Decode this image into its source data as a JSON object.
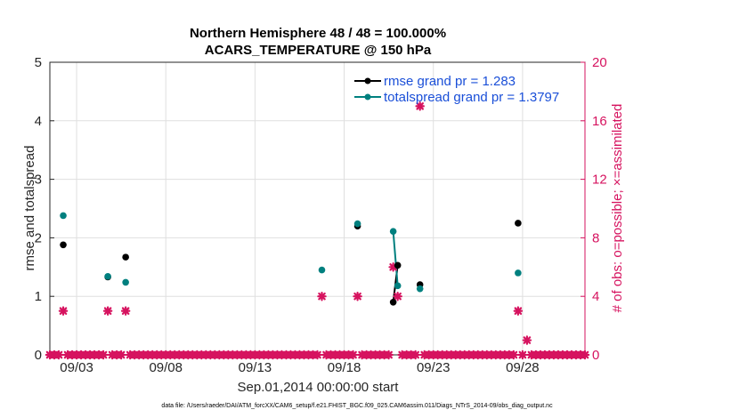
{
  "chart_data": {
    "type": "scatter",
    "title": "Northern Hemisphere 48 / 48 = 100.000%",
    "subtitle": "ACARS_TEMPERATURE @ 150 hPa",
    "xlabel": "Sep.01,2014 00:00:00 start",
    "ylabel": "rmse and totalspread",
    "ylabel_right": "# of obs: o=possible; ×=assimilated",
    "footnote": "data file: /Users/raeder/DAI/ATM_forcXX/CAM6_setup/f.e21.FHIST_BGC.f09_025.CAM6assim.011/Diags_NTrS_2014-09/obs_diag_output.nc",
    "xlim": [
      1.5,
      31.5
    ],
    "ylim": [
      0,
      5
    ],
    "ylim_right": [
      0,
      20
    ],
    "x_ticks": [
      3,
      8,
      13,
      18,
      23,
      28
    ],
    "x_tick_labels": [
      "09/03",
      "09/08",
      "09/13",
      "09/18",
      "09/23",
      "09/28"
    ],
    "y_ticks": [
      0,
      1,
      2,
      3,
      4,
      5
    ],
    "y_tick_labels": [
      "0",
      "1",
      "2",
      "3",
      "4",
      "5"
    ],
    "y_right_ticks": [
      0,
      4,
      8,
      12,
      16,
      20
    ],
    "y_right_tick_labels": [
      "0",
      "4",
      "8",
      "12",
      "16",
      "20"
    ],
    "grid": true,
    "legend_position": "top-right",
    "series": [
      {
        "name": "rmse grand pr = 1.283",
        "color": "#000000",
        "axis": "left",
        "points": [
          [
            2.25,
            1.88
          ],
          [
            4.75,
            1.33
          ],
          [
            5.75,
            1.67
          ],
          [
            18.75,
            2.2
          ],
          [
            20.75,
            0.9
          ],
          [
            21.0,
            1.53
          ],
          [
            22.25,
            1.2
          ],
          [
            27.75,
            2.25
          ]
        ]
      },
      {
        "name": "totalspread grand pr = 1.3797",
        "color": "#00807f",
        "axis": "left",
        "points": [
          [
            2.25,
            2.38
          ],
          [
            4.75,
            1.34
          ],
          [
            5.75,
            1.24
          ],
          [
            16.75,
            1.45
          ],
          [
            18.75,
            2.24
          ],
          [
            20.75,
            2.11
          ],
          [
            21.0,
            1.18
          ],
          [
            22.25,
            1.13
          ],
          [
            27.75,
            1.4
          ]
        ]
      }
    ],
    "lines": [
      {
        "series": 0,
        "from": [
          20.75,
          0.9
        ],
        "to": [
          21.0,
          1.53
        ]
      },
      {
        "series": 1,
        "from": [
          20.75,
          2.11
        ],
        "to": [
          21.0,
          1.18
        ]
      }
    ],
    "obs_assimilated": {
      "color": "#d6135f",
      "axis": "right",
      "x": [
        1.5,
        1.75,
        2.0,
        2.25,
        2.5,
        2.75,
        3.0,
        3.25,
        3.5,
        3.75,
        4.0,
        4.25,
        4.5,
        4.75,
        5.0,
        5.25,
        5.5,
        5.75,
        6.0,
        6.25,
        6.5,
        6.75,
        7.0,
        7.25,
        7.5,
        7.75,
        8.0,
        8.25,
        8.5,
        8.75,
        9.0,
        9.25,
        9.5,
        9.75,
        10.0,
        10.25,
        10.5,
        10.75,
        11.0,
        11.25,
        11.5,
        11.75,
        12.0,
        12.25,
        12.5,
        12.75,
        13.0,
        13.25,
        13.5,
        13.75,
        14.0,
        14.25,
        14.5,
        14.75,
        15.0,
        15.25,
        15.5,
        15.75,
        16.0,
        16.25,
        16.5,
        16.75,
        17.0,
        17.25,
        17.5,
        17.75,
        18.0,
        18.25,
        18.5,
        18.75,
        19.0,
        19.25,
        19.5,
        19.75,
        20.0,
        20.25,
        20.5,
        20.75,
        21.0,
        21.25,
        21.5,
        21.75,
        22.0,
        22.25,
        22.5,
        22.75,
        23.0,
        23.25,
        23.5,
        23.75,
        24.0,
        24.25,
        24.5,
        24.75,
        25.0,
        25.25,
        25.5,
        25.75,
        26.0,
        26.25,
        26.5,
        26.75,
        27.0,
        27.25,
        27.5,
        27.75,
        28.0,
        28.25,
        28.5,
        28.75,
        29.0,
        29.25,
        29.5,
        29.75,
        30.0,
        30.25,
        30.5,
        30.75,
        31.0,
        31.25,
        31.5
      ],
      "y": [
        0,
        0,
        0,
        3,
        0,
        0,
        0,
        0,
        0,
        0,
        0,
        0,
        0,
        3,
        0,
        0,
        0,
        3,
        0,
        0,
        0,
        0,
        0,
        0,
        0,
        0,
        0,
        0,
        0,
        0,
        0,
        0,
        0,
        0,
        0,
        0,
        0,
        0,
        0,
        0,
        0,
        0,
        0,
        0,
        0,
        0,
        0,
        0,
        0,
        0,
        0,
        0,
        0,
        0,
        0,
        0,
        0,
        0,
        0,
        0,
        0,
        4,
        0,
        0,
        0,
        0,
        0,
        0,
        0,
        4,
        0,
        0,
        0,
        0,
        0,
        0,
        0,
        6,
        4,
        0,
        0,
        0,
        0,
        17,
        0,
        0,
        0,
        0,
        0,
        0,
        0,
        0,
        0,
        0,
        0,
        0,
        0,
        0,
        0,
        0,
        0,
        0,
        0,
        0,
        0,
        3,
        0,
        1,
        0,
        0,
        0,
        0,
        0,
        0,
        0,
        0,
        0,
        0,
        0,
        0,
        0
      ]
    }
  }
}
